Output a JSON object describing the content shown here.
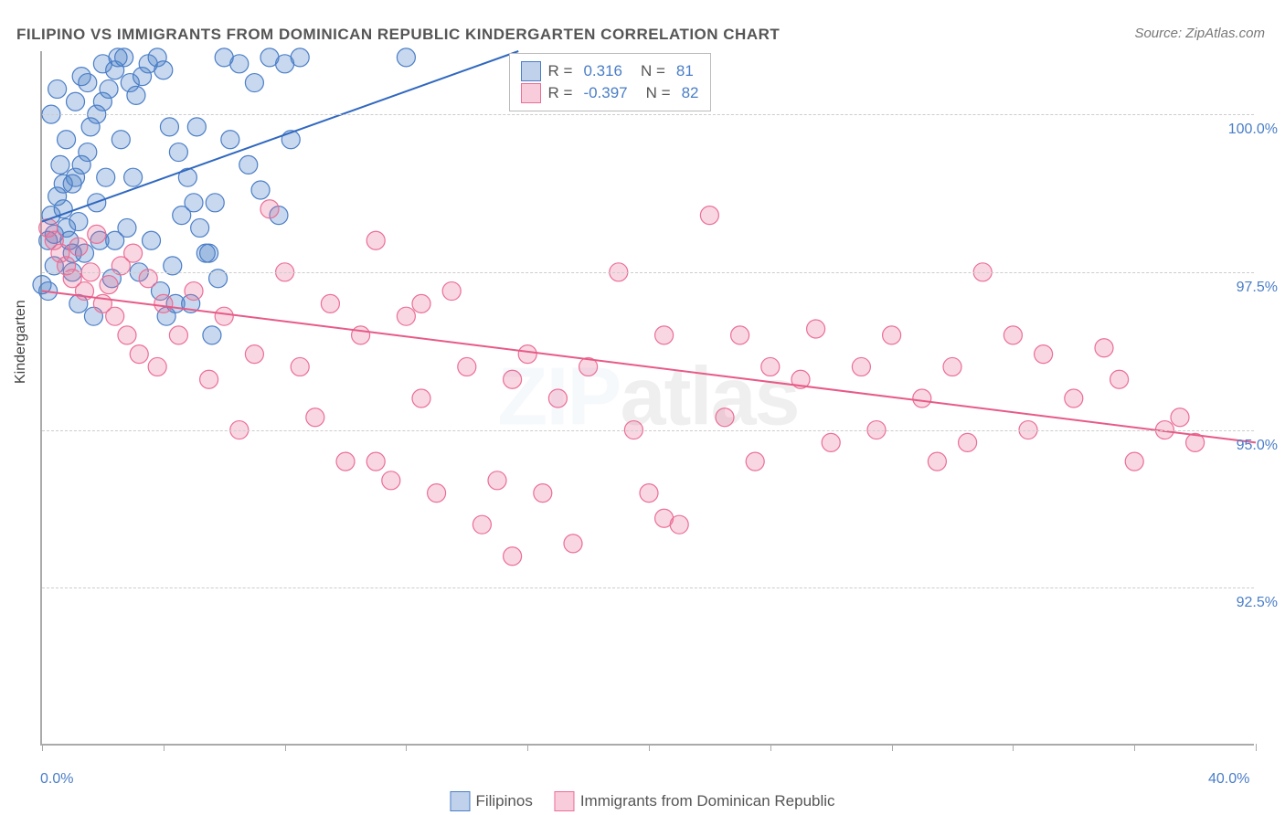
{
  "title": "FILIPINO VS IMMIGRANTS FROM DOMINICAN REPUBLIC KINDERGARTEN CORRELATION CHART",
  "source": "Source: ZipAtlas.com",
  "watermark": "ZIPatlas",
  "ylabel": "Kindergarten",
  "chart": {
    "type": "scatter",
    "xlim": [
      0,
      40
    ],
    "ylim": [
      90,
      101
    ],
    "xtick_positions": [
      0,
      4,
      8,
      12,
      16,
      20,
      24,
      28,
      32,
      36,
      40
    ],
    "ytick_labels": [
      {
        "val": 100.0,
        "label": "100.0%"
      },
      {
        "val": 97.5,
        "label": "97.5%"
      },
      {
        "val": 95.0,
        "label": "95.0%"
      },
      {
        "val": 92.5,
        "label": "92.5%"
      }
    ],
    "xmin_label": "0.0%",
    "xmax_label": "40.0%",
    "background_color": "#ffffff",
    "grid_color": "#cccccc",
    "series": [
      {
        "name": "Filipinos",
        "color_fill": "rgba(74,126,199,0.30)",
        "color_stroke": "#4a7ec7",
        "marker_radius": 10,
        "R": "0.316",
        "N": "81",
        "trend": {
          "x1": 0,
          "y1": 98.3,
          "x2": 15.7,
          "y2": 101.0,
          "stroke": "#3068c0",
          "width": 2
        },
        "points": [
          [
            0.2,
            98.0
          ],
          [
            0.3,
            98.4
          ],
          [
            0.4,
            98.1
          ],
          [
            1.2,
            98.3
          ],
          [
            0.5,
            98.7
          ],
          [
            0.7,
            98.5
          ],
          [
            0.8,
            98.2
          ],
          [
            1.0,
            98.9
          ],
          [
            1.1,
            99.0
          ],
          [
            1.3,
            99.2
          ],
          [
            1.5,
            99.4
          ],
          [
            1.6,
            99.8
          ],
          [
            1.8,
            100.0
          ],
          [
            2.0,
            100.2
          ],
          [
            2.2,
            100.4
          ],
          [
            2.4,
            100.7
          ],
          [
            2.5,
            100.9
          ],
          [
            2.7,
            100.9
          ],
          [
            2.9,
            100.5
          ],
          [
            3.1,
            100.3
          ],
          [
            3.3,
            100.6
          ],
          [
            3.5,
            100.8
          ],
          [
            3.8,
            100.9
          ],
          [
            4.0,
            100.7
          ],
          [
            4.2,
            99.8
          ],
          [
            4.5,
            99.4
          ],
          [
            4.8,
            99.0
          ],
          [
            5.0,
            98.6
          ],
          [
            5.2,
            98.2
          ],
          [
            5.5,
            97.8
          ],
          [
            5.8,
            97.4
          ],
          [
            6.0,
            100.9
          ],
          [
            6.2,
            99.6
          ],
          [
            6.5,
            100.8
          ],
          [
            6.8,
            99.2
          ],
          [
            7.0,
            100.5
          ],
          [
            7.2,
            98.8
          ],
          [
            7.5,
            100.9
          ],
          [
            7.8,
            98.4
          ],
          [
            8.0,
            100.8
          ],
          [
            8.2,
            99.6
          ],
          [
            8.5,
            100.9
          ],
          [
            3.2,
            97.5
          ],
          [
            3.6,
            98.0
          ],
          [
            3.9,
            97.2
          ],
          [
            4.1,
            96.8
          ],
          [
            4.3,
            97.6
          ],
          [
            4.6,
            98.4
          ],
          [
            4.9,
            97.0
          ],
          [
            5.1,
            99.8
          ],
          [
            5.4,
            97.8
          ],
          [
            5.7,
            98.6
          ],
          [
            1.0,
            97.5
          ],
          [
            1.2,
            97.0
          ],
          [
            1.4,
            97.8
          ],
          [
            1.7,
            96.8
          ],
          [
            1.9,
            98.0
          ],
          [
            2.1,
            99.0
          ],
          [
            2.3,
            97.4
          ],
          [
            2.6,
            99.6
          ],
          [
            2.8,
            98.2
          ],
          [
            0.2,
            97.2
          ],
          [
            0.4,
            97.6
          ],
          [
            0.6,
            99.2
          ],
          [
            0.8,
            99.6
          ],
          [
            1.1,
            100.2
          ],
          [
            1.3,
            100.6
          ],
          [
            0.3,
            100.0
          ],
          [
            0.5,
            100.4
          ],
          [
            0.9,
            98.0
          ],
          [
            1.0,
            97.8
          ],
          [
            0.0,
            97.3
          ],
          [
            12.0,
            100.9
          ],
          [
            4.4,
            97.0
          ],
          [
            5.6,
            96.5
          ],
          [
            3.0,
            99.0
          ],
          [
            2.0,
            100.8
          ],
          [
            1.5,
            100.5
          ],
          [
            0.7,
            98.9
          ],
          [
            1.8,
            98.6
          ],
          [
            2.4,
            98.0
          ]
        ]
      },
      {
        "name": "Immigrants from Dominican Republic",
        "color_fill": "rgba(235,110,150,0.28)",
        "color_stroke": "#eb6e96",
        "marker_radius": 10,
        "R": "-0.397",
        "N": "82",
        "trend": {
          "x1": 0,
          "y1": 97.2,
          "x2": 40,
          "y2": 94.8,
          "stroke": "#e85a87",
          "width": 2
        },
        "points": [
          [
            0.2,
            98.2
          ],
          [
            0.4,
            98.0
          ],
          [
            0.6,
            97.8
          ],
          [
            0.8,
            97.6
          ],
          [
            1.0,
            97.4
          ],
          [
            1.2,
            97.9
          ],
          [
            1.4,
            97.2
          ],
          [
            1.6,
            97.5
          ],
          [
            1.8,
            98.1
          ],
          [
            2.0,
            97.0
          ],
          [
            2.2,
            97.3
          ],
          [
            2.4,
            96.8
          ],
          [
            2.6,
            97.6
          ],
          [
            2.8,
            96.5
          ],
          [
            3.0,
            97.8
          ],
          [
            3.2,
            96.2
          ],
          [
            3.5,
            97.4
          ],
          [
            3.8,
            96.0
          ],
          [
            4.0,
            97.0
          ],
          [
            4.5,
            96.5
          ],
          [
            5.0,
            97.2
          ],
          [
            5.5,
            95.8
          ],
          [
            6.0,
            96.8
          ],
          [
            6.5,
            95.0
          ],
          [
            7.0,
            96.2
          ],
          [
            7.5,
            98.5
          ],
          [
            8.0,
            97.5
          ],
          [
            8.5,
            96.0
          ],
          [
            9.0,
            95.2
          ],
          [
            9.5,
            97.0
          ],
          [
            10.0,
            94.5
          ],
          [
            10.5,
            96.5
          ],
          [
            11.0,
            98.0
          ],
          [
            11.5,
            94.2
          ],
          [
            12.0,
            96.8
          ],
          [
            12.5,
            95.5
          ],
          [
            13.0,
            94.0
          ],
          [
            13.5,
            97.2
          ],
          [
            14.0,
            96.0
          ],
          [
            14.5,
            93.5
          ],
          [
            15.0,
            94.2
          ],
          [
            15.5,
            95.8
          ],
          [
            16.0,
            96.2
          ],
          [
            16.5,
            94.0
          ],
          [
            17.0,
            95.5
          ],
          [
            17.5,
            93.2
          ],
          [
            18.0,
            96.0
          ],
          [
            19.0,
            97.5
          ],
          [
            19.5,
            95.0
          ],
          [
            20.0,
            94.0
          ],
          [
            20.5,
            96.5
          ],
          [
            21.0,
            93.5
          ],
          [
            22.0,
            98.4
          ],
          [
            22.5,
            95.2
          ],
          [
            23.0,
            96.5
          ],
          [
            23.5,
            94.5
          ],
          [
            24.0,
            96.0
          ],
          [
            25.0,
            95.8
          ],
          [
            25.5,
            96.6
          ],
          [
            26.0,
            94.8
          ],
          [
            27.0,
            96.0
          ],
          [
            27.5,
            95.0
          ],
          [
            28.0,
            96.5
          ],
          [
            29.0,
            95.5
          ],
          [
            29.5,
            94.5
          ],
          [
            30.0,
            96.0
          ],
          [
            30.5,
            94.8
          ],
          [
            31.0,
            97.5
          ],
          [
            32.0,
            96.5
          ],
          [
            32.5,
            95.0
          ],
          [
            33.0,
            96.2
          ],
          [
            34.0,
            95.5
          ],
          [
            35.0,
            96.3
          ],
          [
            35.5,
            95.8
          ],
          [
            36.0,
            94.5
          ],
          [
            37.0,
            95.0
          ],
          [
            37.5,
            95.2
          ],
          [
            38.0,
            94.8
          ],
          [
            20.5,
            93.6
          ],
          [
            11.0,
            94.5
          ],
          [
            12.5,
            97.0
          ],
          [
            15.5,
            93.0
          ]
        ]
      }
    ]
  },
  "legend": {
    "top_box": {
      "left_pct": 38.5,
      "top_pct": 0
    },
    "bottom_items": [
      {
        "swatch": "blue",
        "label": "Filipinos"
      },
      {
        "swatch": "pink",
        "label": "Immigrants from Dominican Republic"
      }
    ]
  }
}
